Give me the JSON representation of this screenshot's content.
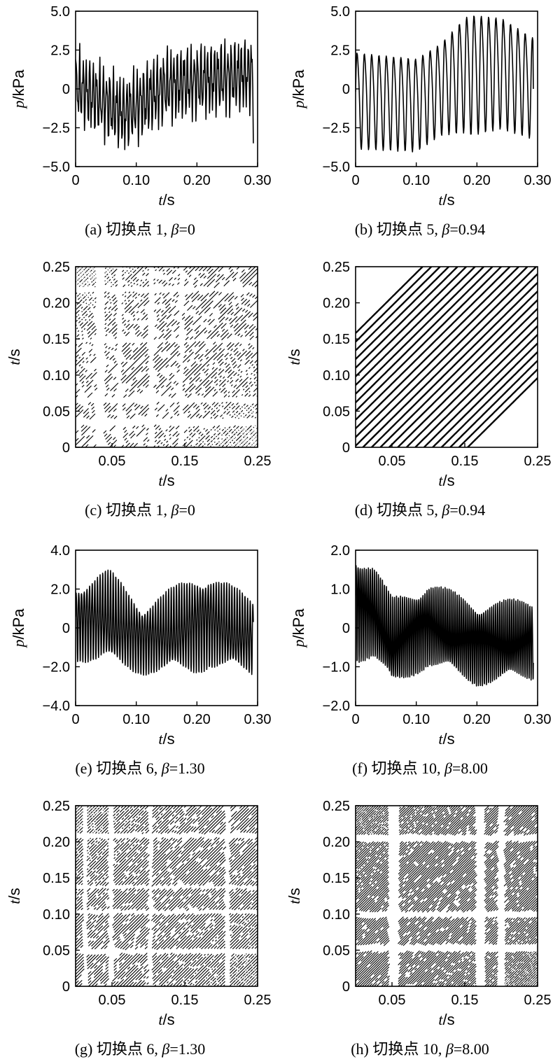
{
  "chart_data": [
    {
      "id": "a",
      "type": "line",
      "caption": "(a) 切换点 1, β=0",
      "xlabel": "t/s",
      "ylabel": "p/kPa",
      "xlim": [
        0,
        0.3
      ],
      "ylim": [
        -5.0,
        5.0
      ],
      "xticks": [
        0,
        0.1,
        0.2,
        0.3
      ],
      "xtick_labels": [
        "0",
        "0.10",
        "0.20",
        "0.30"
      ],
      "yticks": [
        5.0,
        2.5,
        0,
        -2.5,
        -5.0
      ],
      "ytick_labels": [
        "5.0",
        "2.5",
        "0",
        "−2.5",
        "−5.0"
      ],
      "series": [
        {
          "signal": {
            "duration": 0.293,
            "samples": 300,
            "components": [
              {
                "amp": 1.8,
                "freq": 180,
                "phase": 0.3
              },
              {
                "amp": 0.8,
                "freq": 305,
                "phase": 1.1
              },
              {
                "amp": 0.5,
                "freq": 450,
                "phase": 2.0
              }
            ],
            "envelope": [
              [
                0,
                0.2
              ],
              [
                0.08,
                -1.6
              ],
              [
                0.15,
                0.2
              ],
              [
                0.293,
                1.0
              ]
            ],
            "end_value": -3.5
          }
        }
      ]
    },
    {
      "id": "b",
      "type": "line",
      "caption": "(b) 切换点 5, β=0.94",
      "xlabel": "t/s",
      "ylabel": "p/kPa",
      "xlim": [
        0,
        0.3
      ],
      "ylim": [
        -5.0,
        5.0
      ],
      "xticks": [
        0,
        0.1,
        0.2,
        0.3
      ],
      "xtick_labels": [
        "0",
        "0.10",
        "0.20",
        "0.30"
      ],
      "yticks": [
        5.0,
        2.5,
        0,
        -2.5,
        -5.0
      ],
      "ytick_labels": [
        "5.0",
        "2.5",
        "0",
        "−2.5",
        "−5.0"
      ],
      "series": [
        {
          "signal": {
            "duration": 0.293,
            "samples": 400,
            "components": [
              {
                "amp": 3.0,
                "freq": 83,
                "phase": 0.0
              },
              {
                "amp": 0.5,
                "freq": 166,
                "phase": 0.7
              }
            ],
            "envelope": [
              [
                0,
                -0.5
              ],
              [
                0.1,
                -0.8
              ],
              [
                0.18,
                1.2
              ],
              [
                0.24,
                1.3
              ],
              [
                0.293,
                0.3
              ]
            ],
            "amp_scale": [
              [
                0,
                1.0
              ],
              [
                0.14,
                0.95
              ],
              [
                0.19,
                1.25
              ],
              [
                0.293,
                1.05
              ]
            ],
            "clip": [
              -4.6,
              4.9
            ],
            "end_value": 0.0
          }
        }
      ]
    },
    {
      "id": "c",
      "type": "heatmap",
      "caption": "(c) 切换点 1, β=0",
      "xlabel": "t/s",
      "ylabel": "t/s",
      "xlim": [
        0,
        0.25
      ],
      "ylim": [
        0,
        0.25
      ],
      "xticks": [
        0.05,
        0.15,
        0.25
      ],
      "xtick_labels": [
        "0.05",
        "0.15",
        "0.25"
      ],
      "yticks": [
        0.25,
        0.2,
        0.15,
        0.1,
        0.05,
        0
      ],
      "ytick_labels": [
        "0.25",
        "0.20",
        "0.15",
        "0.10",
        "0.05",
        "0"
      ],
      "recurrence": {
        "diagonal_spacing": 0.0055,
        "density": 0.55,
        "blank_bands_x": [
          [
            0.028,
            0.04
          ],
          [
            0.057,
            0.064
          ],
          [
            0.1,
            0.108
          ],
          [
            0.142,
            0.148
          ]
        ],
        "blank_bands_y": [
          [
            0.03,
            0.04
          ],
          [
            0.062,
            0.07
          ],
          [
            0.145,
            0.15
          ],
          [
            0.215,
            0.222
          ]
        ]
      }
    },
    {
      "id": "d",
      "type": "heatmap",
      "caption": "(d) 切换点 5, β=0.94",
      "xlabel": "t/s",
      "ylabel": "t/s",
      "xlim": [
        0,
        0.25
      ],
      "ylim": [
        0,
        0.25
      ],
      "xticks": [
        0.05,
        0.15,
        0.25
      ],
      "xtick_labels": [
        "0.05",
        "0.15",
        "0.25"
      ],
      "yticks": [
        0.25,
        0.2,
        0.15,
        0.1,
        0.05,
        0
      ],
      "ytick_labels": [
        "0.25",
        "0.20",
        "0.15",
        "0.10",
        "0.05",
        "0"
      ],
      "recurrence": {
        "diagonal_spacing": 0.012,
        "density": 1.0,
        "diagonal_band": 0.165
      }
    },
    {
      "id": "e",
      "type": "line",
      "caption": "(e) 切换点 6, β=1.30",
      "xlabel": "t/s",
      "ylabel": "p/kPa",
      "xlim": [
        0,
        0.3
      ],
      "ylim": [
        -4.0,
        4.0
      ],
      "xticks": [
        0,
        0.1,
        0.2,
        0.3
      ],
      "xtick_labels": [
        "0",
        "0.10",
        "0.20",
        "0.30"
      ],
      "yticks": [
        4.0,
        2.0,
        0,
        -2.0,
        -4.0
      ],
      "ytick_labels": [
        "4.0",
        "2.0",
        "0",
        "−2.0",
        "−4.0"
      ],
      "series": [
        {
          "signal": {
            "duration": 0.293,
            "samples": 900,
            "components": [
              {
                "amp": 1.9,
                "freq": 230,
                "phase": 0.0
              },
              {
                "amp": 0.4,
                "freq": 470,
                "phase": 0.9
              }
            ],
            "envelope": [
              [
                0,
                0.3
              ],
              [
                0.05,
                0.6
              ],
              [
                0.11,
                -0.6
              ],
              [
                0.22,
                0.4
              ],
              [
                0.293,
                -0.5
              ]
            ],
            "amp_scale": [
              [
                0,
                0.9
              ],
              [
                0.06,
                1.1
              ],
              [
                0.11,
                0.8
              ],
              [
                0.2,
                1.15
              ],
              [
                0.293,
                0.9
              ]
            ]
          }
        }
      ]
    },
    {
      "id": "f",
      "type": "line",
      "caption": "(f) 切换点 10, β=8.00",
      "xlabel": "t/s",
      "ylabel": "p/kPa",
      "xlim": [
        0,
        0.3
      ],
      "ylim": [
        -2.0,
        2.0
      ],
      "xticks": [
        0,
        0.1,
        0.2,
        0.3
      ],
      "xtick_labels": [
        "0",
        "0.10",
        "0.20",
        "0.30"
      ],
      "yticks": [
        2.0,
        1.0,
        0,
        -1.0,
        -2.0
      ],
      "ytick_labels": [
        "2.0",
        "1.0",
        "0",
        "−1.0",
        "−2.0"
      ],
      "series": [
        {
          "signal": {
            "duration": 0.293,
            "samples": 1100,
            "components": [
              {
                "amp": 1.0,
                "freq": 300,
                "phase": 0.0
              },
              {
                "amp": 0.2,
                "freq": 610,
                "phase": 1.3
              }
            ],
            "envelope": [
              [
                0,
                0.6
              ],
              [
                0.03,
                0.4
              ],
              [
                0.06,
                -0.4
              ],
              [
                0.12,
                0.1
              ],
              [
                0.2,
                -0.4
              ],
              [
                0.293,
                -0.3
              ]
            ],
            "amp_scale": [
              [
                0,
                1.25
              ],
              [
                0.03,
                1.05
              ],
              [
                0.1,
                0.95
              ],
              [
                0.293,
                0.9
              ]
            ]
          }
        }
      ]
    },
    {
      "id": "g",
      "type": "heatmap",
      "caption": "(g) 切换点 6, β=1.30",
      "xlabel": "t/s",
      "ylabel": "t/s",
      "xlim": [
        0,
        0.25
      ],
      "ylim": [
        0,
        0.25
      ],
      "xticks": [
        0.05,
        0.15,
        0.25
      ],
      "xtick_labels": [
        "0.05",
        "0.15",
        "0.25"
      ],
      "yticks": [
        0.25,
        0.2,
        0.15,
        0.1,
        0.05,
        0
      ],
      "ytick_labels": [
        "0.25",
        "0.20",
        "0.15",
        "0.10",
        "0.05",
        "0"
      ],
      "recurrence": {
        "diagonal_spacing": 0.0043,
        "density": 0.85,
        "blank_bands_x": [
          [
            0.01,
            0.016
          ],
          [
            0.045,
            0.052
          ],
          [
            0.1,
            0.106
          ],
          [
            0.205,
            0.212
          ]
        ],
        "blank_bands_y": [
          [
            0.045,
            0.052
          ],
          [
            0.1,
            0.106
          ],
          [
            0.135,
            0.14
          ],
          [
            0.205,
            0.212
          ]
        ]
      }
    },
    {
      "id": "h",
      "type": "heatmap",
      "caption": "(h) 切换点 10, β=8.00",
      "xlabel": "t/s",
      "ylabel": "t/s",
      "xlim": [
        0,
        0.25
      ],
      "ylim": [
        0,
        0.25
      ],
      "xticks": [
        0.05,
        0.15,
        0.25
      ],
      "xtick_labels": [
        "0.05",
        "0.15",
        "0.25"
      ],
      "yticks": [
        0.25,
        0.2,
        0.15,
        0.1,
        0.05,
        0
      ],
      "ytick_labels": [
        "0.25",
        "0.20",
        "0.15",
        "0.10",
        "0.05",
        "0"
      ],
      "recurrence": {
        "diagonal_spacing": 0.0033,
        "density": 0.9,
        "blank_bands_x": [
          [
            0.045,
            0.06
          ],
          [
            0.165,
            0.178
          ],
          [
            0.195,
            0.205
          ]
        ],
        "blank_bands_y": [
          [
            0.048,
            0.058
          ],
          [
            0.095,
            0.104
          ],
          [
            0.2,
            0.21
          ]
        ]
      }
    }
  ]
}
